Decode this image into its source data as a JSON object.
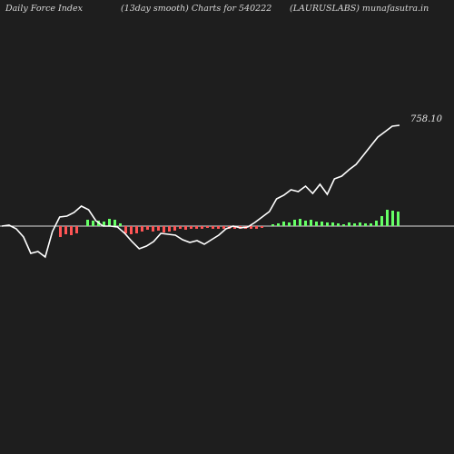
{
  "header": {
    "left": "Daily Force  Index",
    "middle": "(13day smooth) Charts for 540222",
    "right": "(LAURUSLABS) munafasutra.in"
  },
  "chart_data": {
    "type": "bar+line",
    "title": "Daily Force  Index (13day smooth) Charts for 540222 (LAURUSLABS) munafasutra.in",
    "last_value_label": "758.10",
    "bar_colors": {
      "positive": "#66ff66",
      "negative": "#ff5555"
    },
    "line_color": "#ffffff",
    "zero_line_color": "#dddddd",
    "bars": [
      0,
      0,
      0,
      0,
      0,
      -12,
      -9,
      -10,
      -8,
      0,
      7,
      6,
      6,
      5,
      8,
      7,
      3,
      -8,
      -9,
      -8,
      -6,
      -4,
      -6,
      -5,
      -7,
      -6,
      -5,
      -3,
      -4,
      -3,
      -3,
      -3,
      -2,
      -3,
      -3,
      -3,
      -3,
      -3,
      -3,
      -3,
      -3,
      -3,
      -2,
      0,
      2,
      3,
      5,
      4,
      7,
      8,
      6,
      7,
      5,
      5,
      4,
      4,
      3,
      2,
      4,
      3,
      4,
      3,
      3,
      6,
      11,
      18,
      17,
      16
    ],
    "line": [
      0,
      1,
      -3,
      -12,
      -30,
      -28,
      -34,
      -6,
      10,
      11,
      15,
      22,
      18,
      6,
      0,
      0,
      -1,
      -8,
      -17,
      -25,
      -22,
      -17,
      -8,
      -9,
      -10,
      -15,
      -18,
      -16,
      -20,
      -15,
      -10,
      -3,
      0,
      -2,
      -1,
      4,
      10,
      16,
      30,
      34,
      40,
      38,
      44,
      36,
      46,
      35,
      52,
      55,
      62,
      68,
      78,
      88,
      98,
      104,
      110,
      111
    ]
  }
}
